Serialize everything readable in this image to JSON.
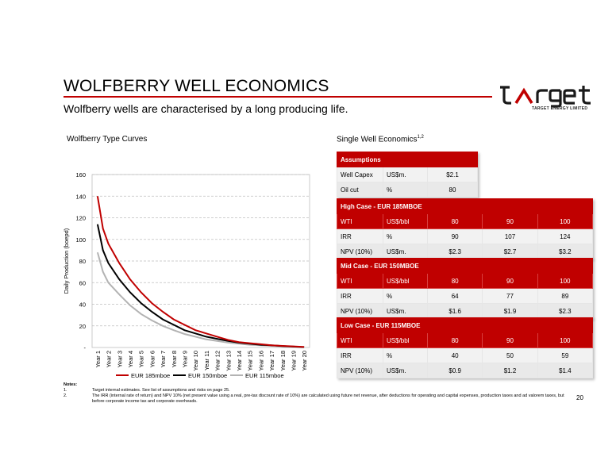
{
  "slide": {
    "title": "WOLFBERRY WELL ECONOMICS",
    "subtitle": "Wolfberry wells are characterised by a long producing life.",
    "page_number": "20"
  },
  "logo": {
    "wordmark": "target",
    "tagline": "TARGET ENERGY LIMITED"
  },
  "colors": {
    "accent": "#c00000"
  },
  "chart_section_label": "Wolfberry Type Curves",
  "economics_section_label": "Single Well Economics",
  "economics_section_sup": "1,2",
  "chart_data": {
    "type": "line",
    "ylabel": "Daily Production (boepd)",
    "xlabel": "",
    "ylim": [
      0,
      160
    ],
    "yticks": [
      "-",
      "20",
      "40",
      "60",
      "80",
      "100",
      "120",
      "140",
      "160"
    ],
    "grid": true,
    "legend_position": "bottom",
    "categories": [
      "Year 1",
      "Year 2",
      "Year 3",
      "Year 4",
      "Year 5",
      "Year 6",
      "Year 7",
      "Year 8",
      "Year 9",
      "Year 10",
      "Year 11",
      "Year 12",
      "Year 13",
      "Year 14",
      "Year 15",
      "Year 16",
      "Year 17",
      "Year 18",
      "Year 19",
      "Year 20"
    ],
    "series": [
      {
        "name": "EUR 185mboe",
        "color": "#c00000",
        "points": [
          [
            0,
            140
          ],
          [
            0.5,
            110
          ],
          [
            1,
            96
          ],
          [
            2,
            78
          ],
          [
            3,
            63
          ],
          [
            4,
            51
          ],
          [
            5,
            41
          ],
          [
            6,
            33
          ],
          [
            7,
            26
          ],
          [
            8,
            21
          ],
          [
            9,
            16
          ],
          [
            10,
            13
          ],
          [
            11,
            10
          ],
          [
            12,
            7
          ],
          [
            13,
            5
          ],
          [
            14,
            4
          ],
          [
            15,
            3
          ],
          [
            16,
            2
          ],
          [
            17,
            1.5
          ],
          [
            18,
            1
          ],
          [
            19,
            0.5
          ]
        ]
      },
      {
        "name": "EUR 150mboe",
        "color": "#000000",
        "points": [
          [
            0,
            114
          ],
          [
            0.5,
            90
          ],
          [
            1,
            78
          ],
          [
            2,
            63
          ],
          [
            3,
            51
          ],
          [
            4,
            41
          ],
          [
            5,
            33
          ],
          [
            6,
            26
          ],
          [
            7,
            21
          ],
          [
            8,
            16
          ],
          [
            9,
            13
          ],
          [
            10,
            10
          ],
          [
            11,
            8
          ],
          [
            12,
            6
          ],
          [
            13,
            4.5
          ],
          [
            14,
            3.5
          ],
          [
            15,
            2.5
          ],
          [
            16,
            2
          ],
          [
            17,
            1.3
          ],
          [
            18,
            0.8
          ],
          [
            19,
            0.4
          ]
        ]
      },
      {
        "name": "EUR 115mboe",
        "color": "#b3b3b3",
        "points": [
          [
            0,
            88
          ],
          [
            0.5,
            70
          ],
          [
            1,
            60
          ],
          [
            2,
            49
          ],
          [
            3,
            39
          ],
          [
            4,
            31
          ],
          [
            5,
            25
          ],
          [
            6,
            20
          ],
          [
            7,
            16
          ],
          [
            8,
            12.5
          ],
          [
            9,
            10
          ],
          [
            10,
            7.5
          ],
          [
            11,
            6
          ],
          [
            12,
            4.5
          ],
          [
            13,
            3.5
          ],
          [
            14,
            2.5
          ],
          [
            15,
            2
          ],
          [
            16,
            1.5
          ],
          [
            17,
            1
          ],
          [
            18,
            0.6
          ],
          [
            19,
            0.3
          ]
        ]
      }
    ]
  },
  "tables": {
    "assumptions": {
      "title": "Assumptions",
      "rows": [
        [
          "Well Capex",
          "US$m.",
          "$2.1"
        ],
        [
          "Oil cut",
          "%",
          "80"
        ]
      ]
    },
    "high": {
      "title": "High Case - EUR 185MBOE",
      "header": [
        "WTI",
        "US$/bbl",
        "80",
        "90",
        "100"
      ],
      "rows": [
        [
          "IRR",
          "%",
          "90",
          "107",
          "124"
        ],
        [
          "NPV (10%)",
          "US$m.",
          "$2.3",
          "$2.7",
          "$3.2"
        ]
      ]
    },
    "mid": {
      "title": "Mid Case - EUR 150MBOE",
      "header": [
        "WTI",
        "US$/bbl",
        "80",
        "90",
        "100"
      ],
      "rows": [
        [
          "IRR",
          "%",
          "64",
          "77",
          "89"
        ],
        [
          "NPV (10%)",
          "US$m.",
          "$1.6",
          "$1.9",
          "$2.3"
        ]
      ]
    },
    "low": {
      "title": "Low Case - EUR 115MBOE",
      "header": [
        "WTI",
        "US$/bbl",
        "80",
        "90",
        "100"
      ],
      "rows": [
        [
          "IRR",
          "%",
          "40",
          "50",
          "59"
        ],
        [
          "NPV (10%)",
          "US$m.",
          "$0.9",
          "$1.2",
          "$1.4"
        ]
      ]
    }
  },
  "notes": {
    "title": "Notes:",
    "items": [
      {
        "num": "1.",
        "text": "Target internal estimates. See list of assumptions and risks on page 25."
      },
      {
        "num": "2.",
        "text": "The IRR (internal rate of return) and NPV 10% (net present value using a real, pre-tax discount rate of 10%) are calculated using future net revenue, after deductions for operating and capital expenses, production taxes and ad valorem taxes, but before corporate income tax and corporate overheads."
      }
    ]
  }
}
